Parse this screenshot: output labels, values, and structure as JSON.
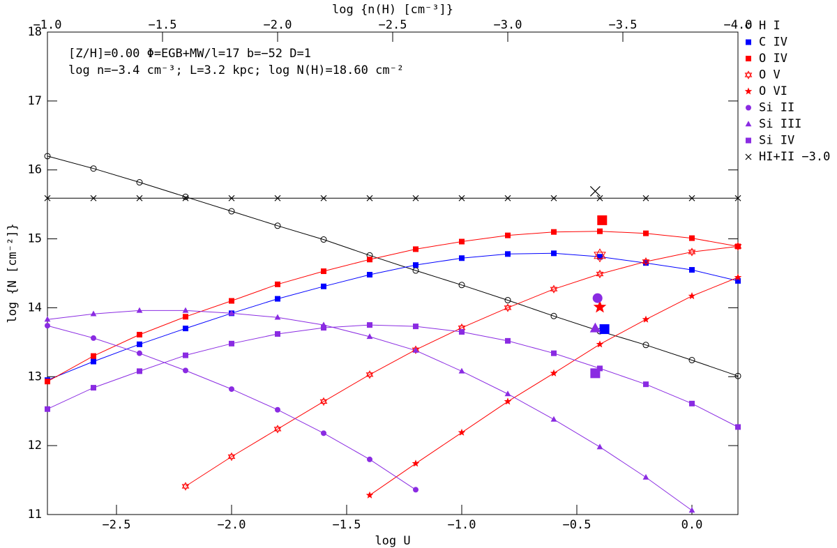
{
  "chart_data": {
    "type": "line",
    "xlabel": "log U",
    "ylabel": "log {N [cm⁻²]}",
    "x2label": "log {n(H) [cm⁻³]}",
    "annotations": [
      "[Z/H]=0.00 Φ=EGB+MW/l=17 b=−52 D=1",
      "log n=−3.4 cm⁻³; L=3.2 kpc; log N(H)=18.60 cm⁻²"
    ],
    "x": [
      -2.8,
      -2.6,
      -2.4,
      -2.2,
      -2.0,
      -1.8,
      -1.6,
      -1.4,
      -1.2,
      -1.0,
      -0.8,
      -0.6,
      -0.4,
      -0.2,
      0.0,
      0.2
    ],
    "xlim": [
      -2.8,
      0.2
    ],
    "xticks": [
      {
        "value": -2.5,
        "label": "−2.5"
      },
      {
        "value": -2.0,
        "label": "−2.0"
      },
      {
        "value": -1.5,
        "label": "−1.5"
      },
      {
        "value": -1.0,
        "label": "−1.0"
      },
      {
        "value": -0.5,
        "label": "−0.5"
      },
      {
        "value": 0.0,
        "label": "0.0"
      }
    ],
    "x2lim": [
      -1.0,
      -4.0
    ],
    "x2ticks": [
      {
        "value": -1.0,
        "label": "−1.0"
      },
      {
        "value": -1.5,
        "label": "−1.5"
      },
      {
        "value": -2.0,
        "label": "−2.0"
      },
      {
        "value": -2.5,
        "label": "−2.5"
      },
      {
        "value": -3.0,
        "label": "−3.0"
      },
      {
        "value": -3.5,
        "label": "−3.5"
      },
      {
        "value": -4.0,
        "label": "−4.0"
      }
    ],
    "ylim": [
      11,
      18
    ],
    "yticks": [
      11,
      12,
      13,
      14,
      15,
      16,
      17,
      18
    ],
    "series": [
      {
        "name": "H I",
        "color": "#000000",
        "marker": "open-circle",
        "values": [
          16.2,
          16.02,
          15.82,
          15.61,
          15.4,
          15.19,
          14.99,
          14.76,
          14.54,
          14.33,
          14.11,
          13.88,
          13.66,
          13.46,
          13.24,
          13.01
        ]
      },
      {
        "name": "C IV",
        "color": "#0000ff",
        "marker": "square",
        "values": [
          12.95,
          13.22,
          13.47,
          13.7,
          13.92,
          14.13,
          14.31,
          14.48,
          14.62,
          14.72,
          14.78,
          14.79,
          14.74,
          14.65,
          14.55,
          14.39
        ],
        "obs_x": -0.38,
        "obs_y": 13.69
      },
      {
        "name": "O IV",
        "color": "#ff0000",
        "marker": "square",
        "values": [
          12.93,
          13.3,
          13.61,
          13.87,
          14.1,
          14.34,
          14.53,
          14.7,
          14.85,
          14.96,
          15.05,
          15.1,
          15.11,
          15.08,
          15.01,
          14.89
        ],
        "obs_x": -0.39,
        "obs_y": 15.27
      },
      {
        "name": "O V",
        "color": "#ff0000",
        "marker": "open-star",
        "values": [
          null,
          null,
          null,
          11.41,
          11.84,
          12.24,
          12.64,
          13.03,
          13.39,
          13.71,
          14.0,
          14.27,
          14.49,
          14.67,
          14.81,
          14.89
        ],
        "obs_x": -0.4,
        "obs_y": 14.76
      },
      {
        "name": "O VI",
        "color": "#ff0000",
        "marker": "star",
        "values": [
          null,
          null,
          null,
          null,
          null,
          null,
          null,
          11.28,
          11.74,
          12.19,
          12.64,
          13.05,
          13.47,
          13.83,
          14.17,
          14.44
        ],
        "obs_x": -0.4,
        "obs_y": 14.01
      },
      {
        "name": "Si II",
        "color": "#8a2be2",
        "marker": "circle",
        "values": [
          13.74,
          13.56,
          13.34,
          13.09,
          12.82,
          12.52,
          12.18,
          11.8,
          11.36,
          null,
          null,
          null,
          null,
          null,
          null,
          null
        ],
        "obs_x": -0.41,
        "obs_y": 14.14
      },
      {
        "name": "Si III",
        "color": "#8a2be2",
        "marker": "triangle",
        "values": [
          13.83,
          13.91,
          13.96,
          13.96,
          13.92,
          13.86,
          13.75,
          13.58,
          13.38,
          13.08,
          12.75,
          12.38,
          11.98,
          11.54,
          11.06,
          null
        ],
        "obs_x": -0.42,
        "obs_y": 13.7
      },
      {
        "name": "Si IV",
        "color": "#8a2be2",
        "marker": "square",
        "values": [
          12.53,
          12.84,
          13.08,
          13.31,
          13.48,
          13.62,
          13.71,
          13.75,
          13.73,
          13.65,
          13.52,
          13.34,
          13.12,
          12.89,
          12.61,
          12.27
        ],
        "obs_x": -0.42,
        "obs_y": 13.05
      },
      {
        "name": "HI+II −3.0",
        "color": "#000000",
        "marker": "cross",
        "values": [
          15.59,
          15.59,
          15.59,
          15.59,
          15.59,
          15.59,
          15.59,
          15.59,
          15.59,
          15.59,
          15.59,
          15.59,
          15.59,
          15.59,
          15.59,
          15.59
        ],
        "obs_x": -0.42,
        "obs_y": 15.69
      }
    ]
  }
}
